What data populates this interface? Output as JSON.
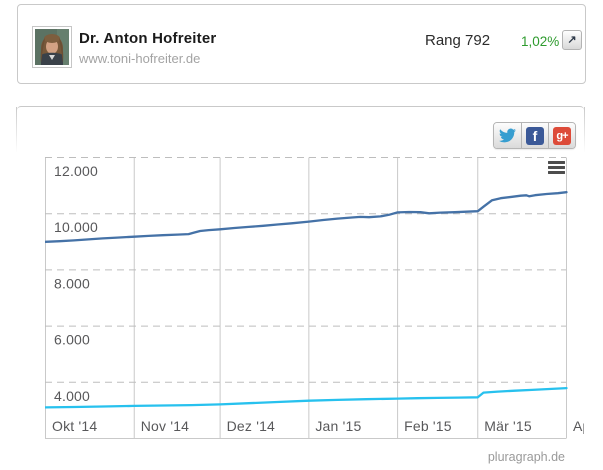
{
  "header_card": {
    "name": "Dr. Anton Hofreiter",
    "website": "www.toni-hofreiter.de",
    "rank": "Rang 792",
    "growth_percent": "1,02%",
    "growth_color": "#2e9b2e",
    "open_icon": "arrow-up-right"
  },
  "share_bar": {
    "buttons": [
      {
        "id": "twitter",
        "icon": "twitter-bird-icon",
        "color": "#379ed0"
      },
      {
        "id": "facebook",
        "icon": "facebook-f-icon",
        "glyph": "f",
        "color": "#3b5998"
      },
      {
        "id": "googleplus",
        "icon": "google-plus-icon",
        "glyph": "g+",
        "color": "#dd4b39"
      }
    ]
  },
  "footer": {
    "brand": "pluragraph.de"
  },
  "chart_data": {
    "type": "line",
    "title": "",
    "legend": "none",
    "x_axis": {
      "tick_labels": [
        "Okt '14",
        "Nov '14",
        "Dez '14",
        "Jan '15",
        "Feb '15",
        "Mär '15",
        "Apr"
      ],
      "tick_days": [
        0,
        31,
        61,
        92,
        123,
        151,
        182
      ],
      "total_days": 182
    },
    "y_axis": {
      "min": 2000,
      "max": 12000,
      "gridline_values": [
        12000,
        10000,
        8000,
        6000,
        4000
      ],
      "gridline_labels": [
        "12.000",
        "10.000",
        "8.000",
        "6.000",
        "4.000"
      ]
    },
    "grid": {
      "horizontal": "dashed",
      "vertical": "solid",
      "color": "#c6c6c6"
    },
    "export_menu_icon": "hamburger-icon",
    "series": [
      {
        "name": "series-dark-blue",
        "color": "#4572a7",
        "points": [
          [
            0,
            9000
          ],
          [
            5,
            9020
          ],
          [
            10,
            9050
          ],
          [
            15,
            9085
          ],
          [
            20,
            9120
          ],
          [
            25,
            9150
          ],
          [
            31,
            9180
          ],
          [
            36,
            9210
          ],
          [
            41,
            9235
          ],
          [
            46,
            9255
          ],
          [
            50,
            9275
          ],
          [
            52,
            9330
          ],
          [
            54,
            9385
          ],
          [
            57,
            9415
          ],
          [
            61,
            9445
          ],
          [
            66,
            9490
          ],
          [
            71,
            9530
          ],
          [
            76,
            9570
          ],
          [
            81,
            9615
          ],
          [
            86,
            9660
          ],
          [
            92,
            9720
          ],
          [
            97,
            9775
          ],
          [
            102,
            9825
          ],
          [
            107,
            9865
          ],
          [
            110,
            9885
          ],
          [
            113,
            9875
          ],
          [
            117,
            9905
          ],
          [
            120,
            9960
          ],
          [
            123,
            10045
          ],
          [
            127,
            10060
          ],
          [
            131,
            10055
          ],
          [
            134,
            10015
          ],
          [
            138,
            10040
          ],
          [
            143,
            10055
          ],
          [
            147,
            10070
          ],
          [
            151,
            10090
          ],
          [
            153,
            10250
          ],
          [
            156,
            10480
          ],
          [
            159,
            10550
          ],
          [
            163,
            10600
          ],
          [
            166,
            10640
          ],
          [
            168,
            10655
          ],
          [
            169,
            10620
          ],
          [
            171,
            10660
          ],
          [
            175,
            10700
          ],
          [
            179,
            10730
          ],
          [
            182,
            10765
          ]
        ]
      },
      {
        "name": "series-light-blue",
        "color": "#27c1ee",
        "points": [
          [
            0,
            3105
          ],
          [
            10,
            3120
          ],
          [
            20,
            3140
          ],
          [
            31,
            3160
          ],
          [
            41,
            3175
          ],
          [
            51,
            3190
          ],
          [
            61,
            3215
          ],
          [
            71,
            3255
          ],
          [
            81,
            3300
          ],
          [
            92,
            3345
          ],
          [
            102,
            3375
          ],
          [
            112,
            3400
          ],
          [
            123,
            3420
          ],
          [
            130,
            3435
          ],
          [
            137,
            3445
          ],
          [
            144,
            3455
          ],
          [
            151,
            3465
          ],
          [
            153,
            3635
          ],
          [
            158,
            3670
          ],
          [
            164,
            3700
          ],
          [
            170,
            3730
          ],
          [
            176,
            3760
          ],
          [
            182,
            3795
          ]
        ]
      }
    ]
  }
}
